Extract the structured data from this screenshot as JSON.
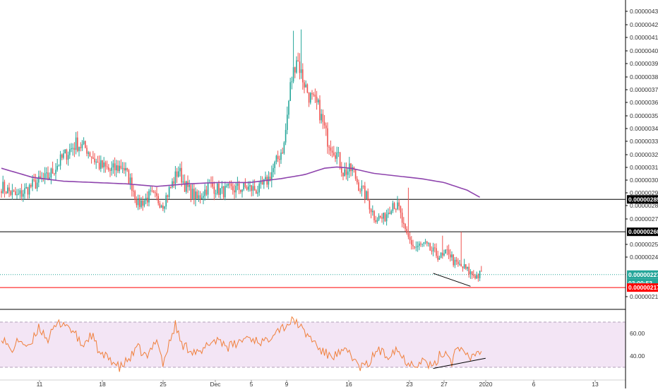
{
  "colors": {
    "up": "#26a69a",
    "down": "#ef5350",
    "ma": "#8e44ad",
    "rsi_line": "#f0803c",
    "rsi_band": "#f3e5f5",
    "last_price_green": "#26a69a",
    "support_red": "#ff0000",
    "level_black": "#000000",
    "axis_text": "#333333"
  },
  "price_axis": {
    "ticks": [
      "0.00000430",
      "0.00000420",
      "0.00000410",
      "0.00000400",
      "0.00000390",
      "0.00000380",
      "0.00000370",
      "0.00000360",
      "0.00000350",
      "0.00000340",
      "0.00000330",
      "0.00000320",
      "0.00000310",
      "0.00000300",
      "0.00000290",
      "0.00000280",
      "0.00000270",
      "0.00000250",
      "0.00000240",
      "0.00000210"
    ],
    "labels": {
      "level_high": "0.00000285",
      "level_mid": "0.00000260",
      "last_price": "0.00000227",
      "countdown": "03:00:53",
      "support": "0.00000217"
    }
  },
  "rsi_axis": {
    "ticks": [
      "60.00",
      "40.00"
    ]
  },
  "time_axis": {
    "ticks": [
      "11",
      "18",
      "25",
      "Dec",
      "5",
      "9",
      "16",
      "23",
      "27",
      "2020",
      "6",
      "13"
    ]
  },
  "chart_data": [
    {
      "type": "candlestick",
      "description": "Price candles with moving average and horizontal levels",
      "ylim": [
        2.05e-06,
        4.32e-06
      ],
      "y_ticks": [
        4.3e-06,
        4.2e-06,
        4.1e-06,
        4e-06,
        3.9e-06,
        3.8e-06,
        3.7e-06,
        3.6e-06,
        3.5e-06,
        3.4e-06,
        3.3e-06,
        3.2e-06,
        3.1e-06,
        3e-06,
        2.9e-06,
        2.8e-06,
        2.7e-06,
        2.5e-06,
        2.4e-06,
        2.1e-06
      ],
      "x_ticks": [
        "11",
        "18",
        "25",
        "Dec",
        "5",
        "9",
        "16",
        "23",
        "27",
        "2020",
        "6",
        "13"
      ],
      "anchors": [
        [
          0,
          2.95e-06
        ],
        [
          10,
          2.87e-06
        ],
        [
          20,
          2.96e-06
        ],
        [
          30,
          3.02e-06
        ],
        [
          40,
          3.18e-06
        ],
        [
          48,
          3.28e-06
        ],
        [
          55,
          3.24e-06
        ],
        [
          62,
          3.12e-06
        ],
        [
          70,
          3.07e-06
        ],
        [
          78,
          3.11e-06
        ],
        [
          84,
          2.96e-06
        ],
        [
          88,
          2.81e-06
        ],
        [
          96,
          2.88e-06
        ],
        [
          104,
          2.82e-06
        ],
        [
          110,
          2.97e-06
        ],
        [
          114,
          3.08e-06
        ],
        [
          118,
          2.96e-06
        ],
        [
          126,
          2.85e-06
        ],
        [
          134,
          2.96e-06
        ],
        [
          142,
          2.91e-06
        ],
        [
          150,
          2.93e-06
        ],
        [
          158,
          2.94e-06
        ],
        [
          166,
          2.92e-06
        ],
        [
          172,
          3.01e-06
        ],
        [
          176,
          3.11e-06
        ],
        [
          182,
          3.27e-06
        ],
        [
          186,
          3.72e-06
        ],
        [
          190,
          3.95e-06
        ],
        [
          194,
          3.78e-06
        ],
        [
          198,
          3.65e-06
        ],
        [
          204,
          3.56e-06
        ],
        [
          210,
          3.31e-06
        ],
        [
          216,
          3.2e-06
        ],
        [
          220,
          3.06e-06
        ],
        [
          226,
          3.08e-06
        ],
        [
          230,
          2.96e-06
        ],
        [
          235,
          2.87e-06
        ],
        [
          240,
          2.72e-06
        ],
        [
          246,
          2.7e-06
        ],
        [
          252,
          2.83e-06
        ],
        [
          256,
          2.77e-06
        ],
        [
          260,
          2.58e-06
        ],
        [
          266,
          2.48e-06
        ],
        [
          272,
          2.5e-06
        ],
        [
          278,
          2.44e-06
        ],
        [
          284,
          2.4e-06
        ],
        [
          288,
          2.45e-06
        ],
        [
          292,
          2.35e-06
        ],
        [
          298,
          2.32e-06
        ],
        [
          302,
          2.28e-06
        ],
        [
          306,
          2.26e-06
        ],
        [
          309,
          2.27e-06
        ]
      ],
      "spikes": [
        [
          188,
          4.15e-06
        ],
        [
          193,
          4.16e-06
        ],
        [
          262,
          2.94e-06
        ],
        [
          284,
          2.57e-06
        ],
        [
          296,
          2.6e-06
        ]
      ],
      "moving_average": [
        [
          0,
          3.09e-06
        ],
        [
          20,
          3.02e-06
        ],
        [
          40,
          2.99e-06
        ],
        [
          60,
          2.98e-06
        ],
        [
          80,
          2.97e-06
        ],
        [
          100,
          2.95e-06
        ],
        [
          120,
          2.97e-06
        ],
        [
          140,
          2.98e-06
        ],
        [
          160,
          2.98e-06
        ],
        [
          180,
          3.01e-06
        ],
        [
          195,
          3.04e-06
        ],
        [
          208,
          3.09e-06
        ],
        [
          216,
          3.1e-06
        ],
        [
          225,
          3.09e-06
        ],
        [
          240,
          3.05e-06
        ],
        [
          255,
          3.03e-06
        ],
        [
          270,
          3.01e-06
        ],
        [
          285,
          2.98e-06
        ],
        [
          300,
          2.92e-06
        ],
        [
          309,
          2.86e-06
        ]
      ],
      "levels": [
        {
          "value": 2.85e-06,
          "style": "black"
        },
        {
          "value": 2.6e-06,
          "style": "black"
        },
        {
          "value": 2.17e-06,
          "style": "red"
        },
        {
          "value": 2.27e-06,
          "style": "green-dotted"
        }
      ],
      "trendline": {
        "from": [
          278,
          2.28e-06
        ],
        "to": [
          302,
          2.18e-06
        ]
      }
    },
    {
      "type": "line",
      "description": "RSI oscillator",
      "ylim": [
        25,
        78
      ],
      "band": [
        30,
        70
      ],
      "y_ticks": [
        60,
        40
      ],
      "anchors": [
        [
          0,
          58
        ],
        [
          6,
          44
        ],
        [
          12,
          55
        ],
        [
          18,
          46
        ],
        [
          24,
          66
        ],
        [
          30,
          55
        ],
        [
          36,
          68
        ],
        [
          40,
          70
        ],
        [
          46,
          62
        ],
        [
          52,
          49
        ],
        [
          58,
          59
        ],
        [
          64,
          40
        ],
        [
          70,
          38
        ],
        [
          76,
          29
        ],
        [
          82,
          37
        ],
        [
          88,
          47
        ],
        [
          94,
          38
        ],
        [
          100,
          57
        ],
        [
          104,
          33
        ],
        [
          112,
          68
        ],
        [
          116,
          50
        ],
        [
          122,
          46
        ],
        [
          128,
          41
        ],
        [
          134,
          52
        ],
        [
          140,
          55
        ],
        [
          146,
          48
        ],
        [
          152,
          51
        ],
        [
          158,
          57
        ],
        [
          164,
          54
        ],
        [
          170,
          52
        ],
        [
          176,
          63
        ],
        [
          182,
          66
        ],
        [
          186,
          70
        ],
        [
          190,
          71
        ],
        [
          194,
          62
        ],
        [
          200,
          55
        ],
        [
          206,
          44
        ],
        [
          212,
          40
        ],
        [
          218,
          42
        ],
        [
          224,
          44
        ],
        [
          230,
          30
        ],
        [
          236,
          32
        ],
        [
          242,
          46
        ],
        [
          248,
          40
        ],
        [
          254,
          47
        ],
        [
          260,
          36
        ],
        [
          266,
          33
        ],
        [
          272,
          36
        ],
        [
          278,
          29
        ],
        [
          282,
          40
        ],
        [
          286,
          44
        ],
        [
          290,
          35
        ],
        [
          294,
          51
        ],
        [
          298,
          40
        ],
        [
          302,
          38
        ],
        [
          306,
          44
        ],
        [
          309,
          43
        ]
      ],
      "trendline": {
        "from": [
          278,
          29
        ],
        "to": [
          309,
          38
        ]
      }
    }
  ]
}
